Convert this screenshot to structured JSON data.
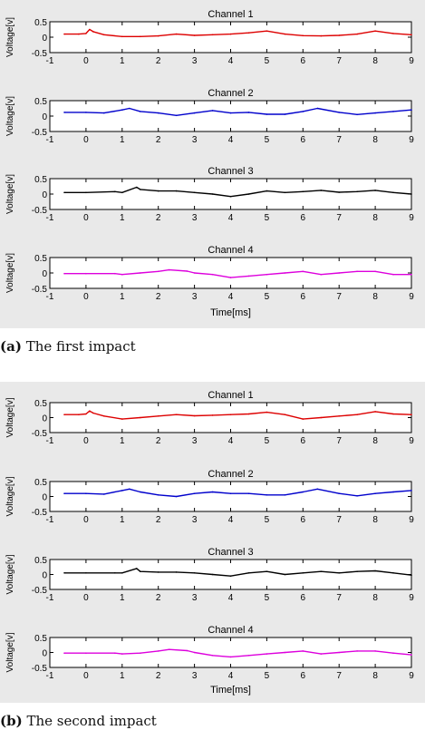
{
  "figures": [
    {
      "caption_label": "(a)",
      "caption_text": "The first impact",
      "chart_data": {
        "type": "line",
        "xlabel": "Time[ms]",
        "xlim": [
          -1,
          9
        ],
        "xticks": [
          -1,
          0,
          1,
          2,
          3,
          4,
          5,
          6,
          7,
          8,
          9
        ],
        "xtick_labels": [
          "-1",
          "0",
          "1",
          "2",
          "3",
          "4",
          "5",
          "6",
          "7",
          "8",
          "9"
        ],
        "ylim": [
          -0.5,
          0.5
        ],
        "yticks": [
          -0.5,
          0,
          0.5
        ],
        "ytick_labels": [
          "-0.5",
          "0",
          "0.5"
        ],
        "ylabel": "Voltage[v]",
        "grid": false,
        "subplots": [
          {
            "title": "Channel 1",
            "color": "#dd0000",
            "x": [
              -0.6,
              -0.2,
              0.0,
              0.1,
              0.2,
              0.5,
              1.0,
              1.5,
              2.0,
              2.5,
              3.0,
              3.5,
              4.0,
              4.5,
              5.0,
              5.5,
              6.0,
              6.5,
              7.0,
              7.5,
              8.0,
              8.5,
              9.0
            ],
            "y": [
              0.1,
              0.1,
              0.12,
              0.25,
              0.18,
              0.08,
              0.02,
              0.02,
              0.04,
              0.1,
              0.06,
              0.08,
              0.1,
              0.14,
              0.2,
              0.1,
              0.05,
              0.04,
              0.06,
              0.1,
              0.2,
              0.12,
              0.08
            ]
          },
          {
            "title": "Channel 2",
            "color": "#0000cc",
            "x": [
              -0.6,
              0.0,
              0.5,
              1.0,
              1.2,
              1.5,
              2.0,
              2.5,
              3.0,
              3.5,
              4.0,
              4.5,
              5.0,
              5.5,
              6.0,
              6.4,
              7.0,
              7.5,
              8.0,
              8.5,
              9.0
            ],
            "y": [
              0.12,
              0.12,
              0.1,
              0.2,
              0.25,
              0.15,
              0.1,
              0.02,
              0.1,
              0.18,
              0.1,
              0.12,
              0.06,
              0.06,
              0.15,
              0.25,
              0.12,
              0.05,
              0.1,
              0.15,
              0.2
            ]
          },
          {
            "title": "Channel 3",
            "color": "#000000",
            "x": [
              -0.6,
              0.0,
              0.8,
              1.0,
              1.4,
              1.5,
              2.0,
              2.5,
              3.0,
              3.5,
              4.0,
              4.5,
              5.0,
              5.5,
              6.0,
              6.5,
              7.0,
              7.5,
              8.0,
              8.5,
              9.0
            ],
            "y": [
              0.05,
              0.05,
              0.08,
              0.05,
              0.22,
              0.15,
              0.1,
              0.1,
              0.05,
              0.0,
              -0.08,
              0.0,
              0.1,
              0.05,
              0.08,
              0.12,
              0.06,
              0.08,
              0.12,
              0.05,
              0.0
            ]
          },
          {
            "title": "Channel 4",
            "color": "#dd00dd",
            "x": [
              -0.6,
              0.0,
              0.8,
              1.0,
              1.5,
              2.0,
              2.3,
              2.8,
              3.0,
              3.5,
              4.0,
              4.5,
              5.0,
              5.5,
              6.0,
              6.5,
              7.0,
              7.5,
              8.0,
              8.5,
              9.0
            ],
            "y": [
              -0.02,
              -0.02,
              -0.02,
              -0.05,
              0.0,
              0.05,
              0.1,
              0.06,
              0.0,
              -0.05,
              -0.15,
              -0.1,
              -0.05,
              0.0,
              0.05,
              -0.05,
              0.0,
              0.05,
              0.05,
              -0.05,
              -0.05
            ]
          }
        ]
      }
    },
    {
      "caption_label": "(b)",
      "caption_text": "The second impact",
      "chart_data": {
        "type": "line",
        "xlabel": "Time[ms]",
        "xlim": [
          -1,
          9
        ],
        "xticks": [
          -1,
          0,
          1,
          2,
          3,
          4,
          5,
          6,
          7,
          8,
          9
        ],
        "xtick_labels": [
          "-1",
          "0",
          "1",
          "2",
          "3",
          "4",
          "5",
          "6",
          "7",
          "8",
          "9"
        ],
        "ylim": [
          -0.5,
          0.5
        ],
        "yticks": [
          -0.5,
          0,
          0.5
        ],
        "ytick_labels": [
          "-0.5",
          "0",
          "0.5"
        ],
        "ylabel": "Voltage[v]",
        "grid": false,
        "subplots": [
          {
            "title": "Channel 1",
            "color": "#dd0000",
            "x": [
              -0.6,
              -0.2,
              0.0,
              0.1,
              0.2,
              0.5,
              1.0,
              1.5,
              2.0,
              2.5,
              3.0,
              3.5,
              4.0,
              4.5,
              5.0,
              5.5,
              6.0,
              6.5,
              7.0,
              7.5,
              8.0,
              8.5,
              9.0
            ],
            "y": [
              0.1,
              0.1,
              0.12,
              0.22,
              0.15,
              0.05,
              -0.05,
              0.0,
              0.05,
              0.1,
              0.06,
              0.08,
              0.1,
              0.12,
              0.18,
              0.1,
              -0.05,
              0.0,
              0.05,
              0.1,
              0.2,
              0.12,
              0.1
            ]
          },
          {
            "title": "Channel 2",
            "color": "#0000cc",
            "x": [
              -0.6,
              0.0,
              0.5,
              1.0,
              1.2,
              1.5,
              2.0,
              2.5,
              3.0,
              3.5,
              4.0,
              4.5,
              5.0,
              5.5,
              6.0,
              6.4,
              7.0,
              7.5,
              8.0,
              8.5,
              9.0
            ],
            "y": [
              0.1,
              0.1,
              0.08,
              0.2,
              0.25,
              0.15,
              0.05,
              0.0,
              0.1,
              0.15,
              0.1,
              0.1,
              0.05,
              0.05,
              0.15,
              0.25,
              0.1,
              0.02,
              0.1,
              0.15,
              0.2
            ]
          },
          {
            "title": "Channel 3",
            "color": "#000000",
            "x": [
              -0.6,
              0.0,
              0.8,
              1.0,
              1.4,
              1.5,
              2.0,
              2.5,
              3.0,
              3.5,
              4.0,
              4.5,
              5.0,
              5.5,
              6.0,
              6.5,
              7.0,
              7.5,
              8.0,
              8.5,
              9.0
            ],
            "y": [
              0.05,
              0.05,
              0.05,
              0.05,
              0.2,
              0.1,
              0.08,
              0.08,
              0.05,
              0.0,
              -0.05,
              0.05,
              0.1,
              0.0,
              0.05,
              0.1,
              0.05,
              0.1,
              0.12,
              0.05,
              -0.02
            ]
          },
          {
            "title": "Channel 4",
            "color": "#dd00dd",
            "x": [
              -0.6,
              0.0,
              0.8,
              1.0,
              1.5,
              2.0,
              2.3,
              2.8,
              3.0,
              3.5,
              4.0,
              4.5,
              5.0,
              5.5,
              6.0,
              6.5,
              7.0,
              7.5,
              8.0,
              8.5,
              9.0
            ],
            "y": [
              -0.02,
              -0.02,
              -0.02,
              -0.05,
              -0.02,
              0.05,
              0.1,
              0.06,
              0.0,
              -0.1,
              -0.15,
              -0.1,
              -0.05,
              0.0,
              0.05,
              -0.05,
              0.0,
              0.05,
              0.05,
              -0.02,
              -0.08
            ]
          }
        ]
      }
    }
  ]
}
